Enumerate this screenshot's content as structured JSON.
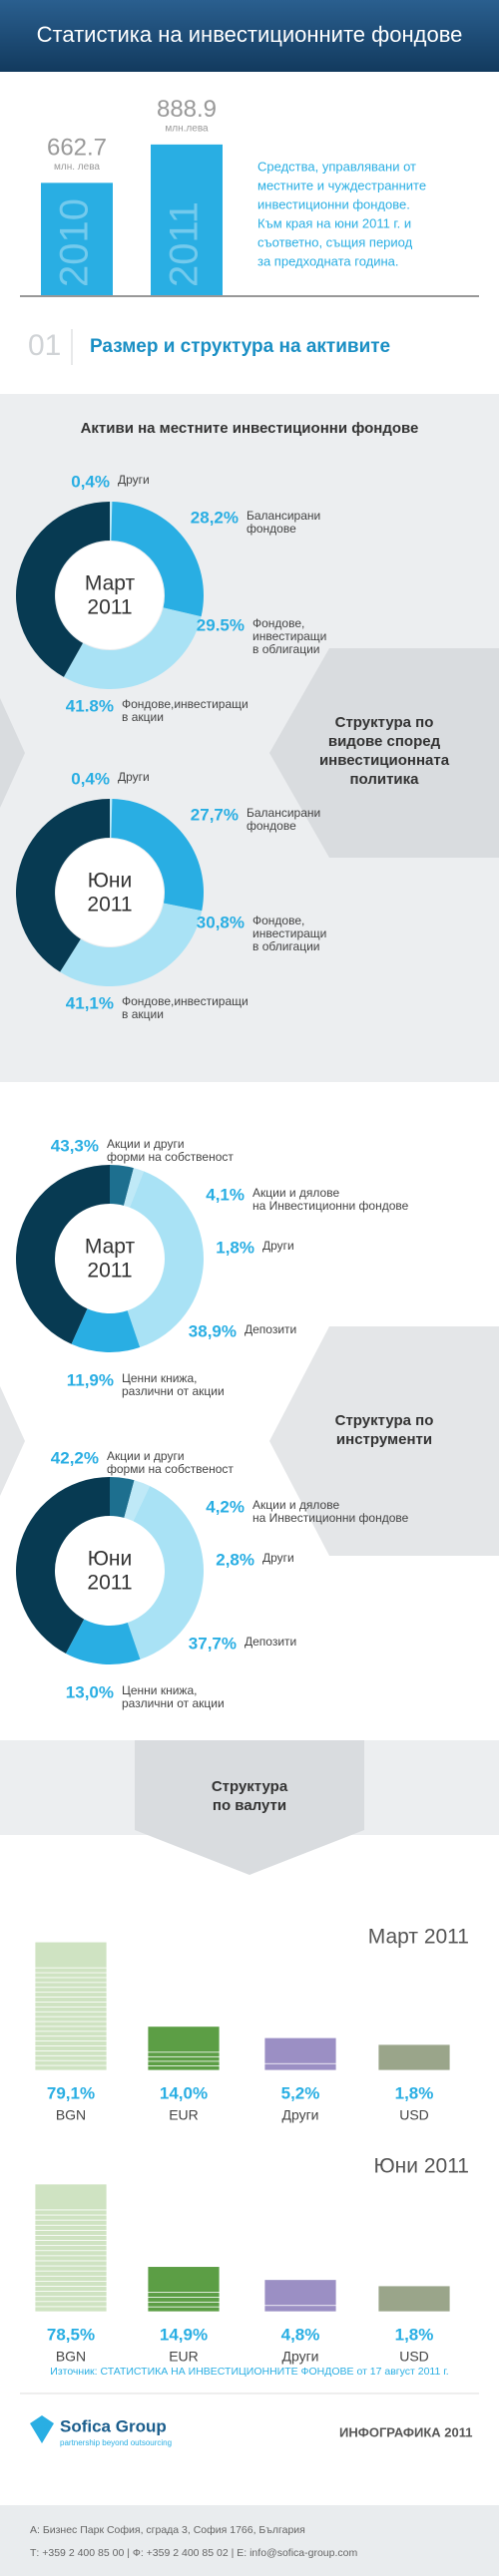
{
  "header": {
    "title": "Статистика на инвестиционните фондове"
  },
  "intro": {
    "lines": [
      "Средства, управлявани от",
      "местните и чуждестранните",
      "инвестиционни фондове.",
      "Към края на юни 2011 г. и",
      "съответно, същия период",
      "за предходната година."
    ]
  },
  "section": {
    "number": "01",
    "title": "Размер и структура на активите"
  },
  "assets_heading": "Активи на местните инвестиционни фондове",
  "policy_label": [
    "Структура по",
    "видове според",
    "инвестиционната",
    "политика"
  ],
  "instruments_label": [
    "Структура по",
    "инструменти"
  ],
  "currency_label": [
    "Структура",
    "по валути"
  ],
  "chart_data": [
    {
      "type": "bar",
      "categories": [
        "2010",
        "2011"
      ],
      "values": [
        662.7,
        888.9
      ],
      "units": [
        "млн. лева",
        "млн.лева"
      ],
      "color": "#29aee3"
    },
    {
      "type": "donut",
      "center": [
        "Март",
        "2011"
      ],
      "categories": [
        [
          "Други"
        ],
        [
          "Балансирани",
          "фондове"
        ],
        [
          "Фондове,",
          "инвестиращи",
          "в облигации"
        ],
        [
          "Фондове,инвестиращи",
          "в акции"
        ]
      ],
      "values": [
        0.4,
        28.2,
        29.5,
        41.8
      ],
      "value_labels": [
        "0,4%",
        "28,2%",
        "29.5%",
        "41.8%"
      ],
      "colors": [
        "#bfe9f7",
        "#29aee3",
        "#a9e2f5",
        "#073a52"
      ]
    },
    {
      "type": "donut",
      "center": [
        "Юни",
        "2011"
      ],
      "categories": [
        [
          "Други"
        ],
        [
          "Балансирани",
          "фондове"
        ],
        [
          "Фондове,",
          "инвестиращи",
          "в облигации"
        ],
        [
          "Фондове,инвестиращи",
          "в акции"
        ]
      ],
      "values": [
        0.4,
        27.7,
        30.8,
        41.1
      ],
      "value_labels": [
        "0,4%",
        "27,7%",
        "30,8%",
        "41,1%"
      ],
      "colors": [
        "#bfe9f7",
        "#29aee3",
        "#a9e2f5",
        "#073a52"
      ]
    },
    {
      "type": "donut",
      "center": [
        "Март",
        "2011"
      ],
      "categories": [
        [
          "Акции и други",
          "форми на собственост"
        ],
        [
          "Акции и дялове",
          "на Инвестиционни фондове"
        ],
        [
          "Други"
        ],
        [
          "Депозити"
        ],
        [
          "Ценни книжа,",
          "различни от акции"
        ]
      ],
      "values": [
        43.3,
        4.1,
        1.8,
        38.9,
        11.9
      ],
      "value_labels": [
        "43,3%",
        "4,1%",
        "1,8%",
        "38,9%",
        "11,9%"
      ],
      "colors": [
        "#073a52",
        "#1d6f8f",
        "#bfe9f7",
        "#a9e2f5",
        "#29aee3"
      ]
    },
    {
      "type": "donut",
      "center": [
        "Юни",
        "2011"
      ],
      "categories": [
        [
          "Акции и други",
          "форми на собственост"
        ],
        [
          "Акции и дялове",
          "на Инвестиционни фондове"
        ],
        [
          "Други"
        ],
        [
          "Депозити"
        ],
        [
          "Ценни книжа,",
          "различни от акции"
        ]
      ],
      "values": [
        42.2,
        4.2,
        2.8,
        37.7,
        13.0
      ],
      "value_labels": [
        "42,2%",
        "4,2%",
        "2,8%",
        "37,7%",
        "13,0%"
      ],
      "colors": [
        "#073a52",
        "#1d6f8f",
        "#bfe9f7",
        "#a9e2f5",
        "#29aee3"
      ]
    },
    {
      "type": "notes",
      "title": "Март 2011",
      "categories": [
        "BGN",
        "EUR",
        "Други",
        "USD"
      ],
      "values": [
        79.1,
        14.0,
        5.2,
        1.8
      ],
      "value_labels": [
        "79,1%",
        "14,0%",
        "5,2%",
        "1,8%"
      ],
      "colors": [
        "#cfe3c2",
        "#5c9e45",
        "#9b8fc4",
        "#9aa58a"
      ]
    },
    {
      "type": "notes",
      "title": "Юни 2011",
      "categories": [
        "BGN",
        "EUR",
        "Други",
        "USD"
      ],
      "values": [
        78.5,
        14.9,
        4.8,
        1.8
      ],
      "value_labels": [
        "78,5%",
        "14,9%",
        "4,8%",
        "1,8%"
      ],
      "colors": [
        "#cfe3c2",
        "#5c9e45",
        "#9b8fc4",
        "#9aa58a"
      ]
    }
  ],
  "source": "Източник: СТАТИСТИКА НА ИНВЕСТИЦИОННИТЕ ФОНДОВЕ от 17 август 2011 г.",
  "footer": {
    "logo": "Sofica Group",
    "tagline": "partnership beyond outsourcing",
    "label": "ИНФОГРАФИКА 2011",
    "address": "А: Бизнес Парк София, сграда 3, София 1766, България",
    "contacts": "Т: +359 2 400 85 00  |  Ф: +359 2 400 85 02  |  E: info@sofica-group.com"
  }
}
